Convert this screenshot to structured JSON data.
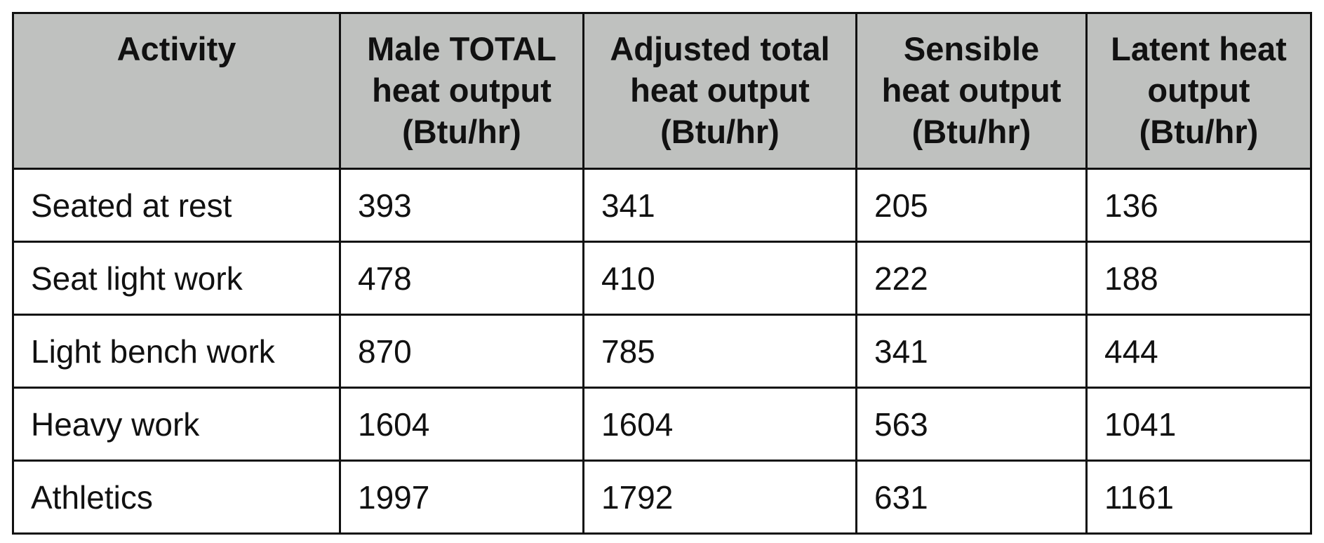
{
  "table": {
    "headers": [
      {
        "lines": [
          "Activity"
        ]
      },
      {
        "lines": [
          "Male TOTAL",
          "heat output",
          "(Btu/hr)"
        ]
      },
      {
        "lines": [
          "Adjusted total",
          "heat output",
          "(Btu/hr)"
        ]
      },
      {
        "lines": [
          "Sensible",
          "heat output",
          "(Btu/hr)"
        ]
      },
      {
        "lines": [
          "Latent heat",
          "output",
          "(Btu/hr)"
        ]
      }
    ],
    "rows": [
      [
        "Seated at rest",
        "393",
        "341",
        "205",
        "136"
      ],
      [
        "Seat light work",
        "478",
        "410",
        "222",
        "188"
      ],
      [
        "Light bench work",
        "870",
        "785",
        "341",
        "444"
      ],
      [
        "Heavy work",
        "1604",
        "1604",
        "563",
        "1041"
      ],
      [
        "Athletics",
        "1997",
        "1792",
        "631",
        "1161"
      ]
    ],
    "header_background": "#bfc1bf",
    "border_color": "#111111"
  }
}
